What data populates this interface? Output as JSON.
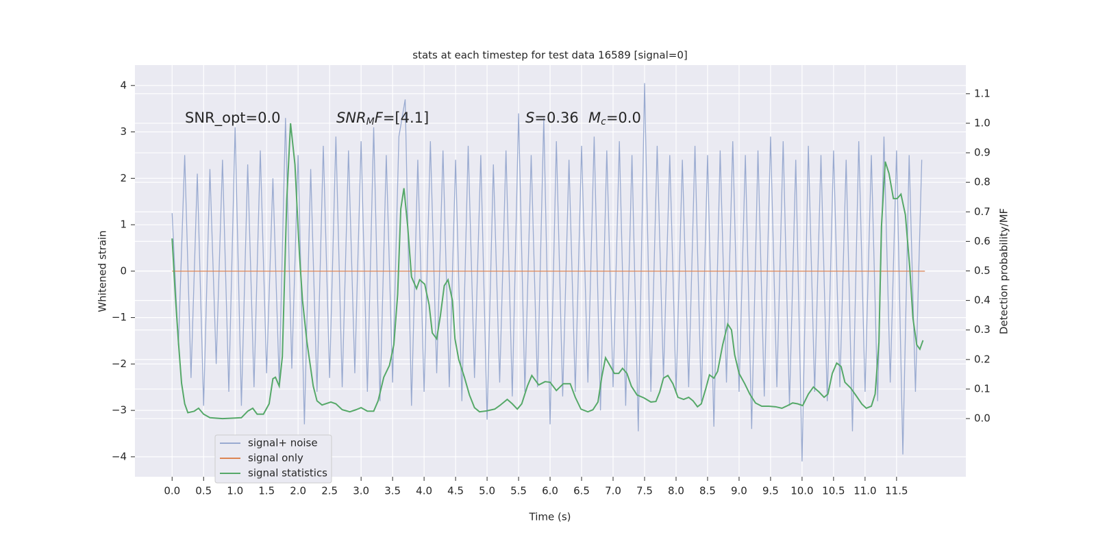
{
  "chart_data": {
    "type": "line",
    "title": "stats at each timestep for test data 16589 [signal=0]",
    "xlabel": "Time (s)",
    "ylabel": "Whitened strain",
    "y2label": "Detection probability/MF",
    "xlim": [
      -0.59,
      12.6
    ],
    "ylim": [
      -4.43,
      4.44
    ],
    "y2lim": [
      -0.197,
      1.197
    ],
    "xticks": [
      {
        "value": 0,
        "label": "0.0"
      },
      0.5,
      {
        "value": 1,
        "label": "1.0"
      },
      1.5,
      {
        "value": 2,
        "label": "2.0"
      },
      2.5,
      {
        "value": 3,
        "label": "3.0"
      },
      3.5,
      {
        "value": 4,
        "label": "4.0"
      },
      4.5,
      {
        "value": 5,
        "label": "5.0"
      },
      5.5,
      {
        "value": 6,
        "label": "6.0"
      },
      6.5,
      {
        "value": 7,
        "label": "7.0"
      },
      7.5,
      {
        "value": 8,
        "label": "8.0"
      },
      8.5,
      {
        "value": 9,
        "label": "9.0"
      },
      9.5,
      {
        "value": 10,
        "label": "10.0"
      },
      10.5,
      {
        "value": 11,
        "label": "11.0"
      },
      11.5
    ],
    "yticks": [
      {
        "value": -4,
        "label": "−4"
      },
      {
        "value": -3,
        "label": "−3"
      },
      {
        "value": -2,
        "label": "−2"
      },
      {
        "value": -1,
        "label": "−1"
      },
      0,
      1,
      2,
      3,
      4
    ],
    "y2ticks": [
      {
        "value": 0,
        "label": "0.0"
      },
      0.1,
      0.2,
      0.3,
      0.4,
      0.5,
      0.6,
      0.7,
      0.8,
      0.9,
      {
        "value": 1,
        "label": "1.0"
      },
      1.1
    ],
    "grid": true,
    "legend_loc": "lower left",
    "annotations": [
      {
        "parts": [
          {
            "text": "SNR_opt=0.0",
            "style": "normal"
          }
        ]
      },
      {
        "parts": [
          {
            "text": "SNR",
            "style": "italic"
          },
          {
            "text": "M",
            "style": "sub"
          },
          {
            "text": "F",
            "style": "italic"
          },
          {
            "text": "=[4.1]",
            "style": "normal"
          }
        ]
      },
      {
        "parts": [
          {
            "text": "S",
            "style": "italic"
          },
          {
            "text": "=0.36",
            "style": "normal"
          }
        ]
      },
      {
        "parts": [
          {
            "text": "M",
            "style": "italic"
          },
          {
            "text": "c",
            "style": "sub"
          },
          {
            "text": "=0.0",
            "style": "normal"
          }
        ]
      }
    ],
    "series": [
      {
        "name": "signal+ noise",
        "color": "#99aad0",
        "axis": "y",
        "x": [
          0,
          0.1,
          0.2,
          0.3,
          0.4,
          0.5,
          0.6,
          0.7,
          0.8,
          0.9,
          1,
          1.1,
          1.2,
          1.3,
          1.4,
          1.5,
          1.6,
          1.7,
          1.8,
          1.9,
          2,
          2.1,
          2.2,
          2.3,
          2.4,
          2.5,
          2.6,
          2.7,
          2.8,
          2.9,
          3,
          3.1,
          3.2,
          3.3,
          3.4,
          3.5,
          3.6,
          3.7,
          3.8,
          3.9,
          4,
          4.1,
          4.2,
          4.3,
          4.4,
          4.5,
          4.6,
          4.7,
          4.8,
          4.9,
          5,
          5.1,
          5.2,
          5.3,
          5.4,
          5.5,
          5.6,
          5.7,
          5.8,
          5.9,
          6,
          6.1,
          6.2,
          6.3,
          6.4,
          6.5,
          6.6,
          6.7,
          6.8,
          6.9,
          7,
          7.1,
          7.2,
          7.3,
          7.4,
          7.5,
          7.6,
          7.7,
          7.8,
          7.9,
          8,
          8.1,
          8.2,
          8.3,
          8.4,
          8.5,
          8.6,
          8.7,
          8.8,
          8.9,
          9,
          9.1,
          9.2,
          9.3,
          9.4,
          9.5,
          9.6,
          9.7,
          9.8,
          9.9,
          10,
          10.1,
          10.2,
          10.3,
          10.4,
          10.5,
          10.6,
          10.7,
          10.8,
          10.9,
          11,
          11.1,
          11.2,
          11.3,
          11.4,
          11.5,
          11.6,
          11.7,
          11.8,
          11.9
        ],
        "values": [
          1.25,
          -1.6,
          2.5,
          -2.3,
          2.1,
          -2.9,
          2.2,
          -2.0,
          2.4,
          -2.6,
          3.1,
          -2.9,
          2.3,
          -2.5,
          2.6,
          -2.2,
          2.0,
          -2.4,
          3.3,
          -2.1,
          2.5,
          -3.3,
          2.2,
          -2.6,
          2.7,
          -2.3,
          2.9,
          -2.5,
          2.6,
          -2.2,
          2.8,
          -2.6,
          3.1,
          -2.8,
          2.5,
          -2.4,
          2.9,
          3.7,
          -2.9,
          2.4,
          -2.6,
          2.8,
          -2.2,
          2.6,
          -2.5,
          2.4,
          -2.8,
          2.7,
          -2.3,
          2.5,
          -3.2,
          2.3,
          -2.4,
          2.6,
          -2.7,
          3.4,
          -2.6,
          2.5,
          -2.5,
          3.3,
          -3.3,
          2.8,
          -2.7,
          2.4,
          -2.6,
          2.7,
          -2.4,
          2.9,
          -3.0,
          2.6,
          -2.5,
          2.8,
          -2.9,
          2.5,
          -3.45,
          4.05,
          -2.6,
          2.7,
          -2.3,
          2.5,
          -2.6,
          2.4,
          -2.5,
          2.7,
          -2.8,
          2.5,
          -3.35,
          2.6,
          -2.4,
          2.8,
          -2.6,
          2.5,
          -3.4,
          2.6,
          -2.7,
          2.9,
          -2.5,
          2.8,
          -2.9,
          2.4,
          -4.1,
          2.7,
          -2.6,
          2.5,
          -2.8,
          2.6,
          -2.5,
          2.4,
          -3.45,
          2.8,
          -2.6,
          2.5,
          -2.8,
          2.9,
          -2.4,
          2.6,
          -3.95,
          2.5,
          -2.6,
          2.4
        ]
      },
      {
        "name": "signal only",
        "color": "#dd8452",
        "axis": "y",
        "x": [
          0,
          11.95
        ],
        "values": [
          0,
          0
        ]
      },
      {
        "name": "signal statistics",
        "color": "#55a868",
        "axis": "y2",
        "x": [
          0,
          0.05,
          0.1,
          0.15,
          0.2,
          0.25,
          0.35,
          0.42,
          0.5,
          0.6,
          0.8,
          1.0,
          1.1,
          1.2,
          1.28,
          1.35,
          1.45,
          1.54,
          1.6,
          1.64,
          1.7,
          1.75,
          1.82,
          1.88,
          1.95,
          2.02,
          2.07,
          2.14,
          2.24,
          2.3,
          2.38,
          2.52,
          2.6,
          2.7,
          2.82,
          2.92,
          3.0,
          3.1,
          3.2,
          3.27,
          3.36,
          3.45,
          3.52,
          3.58,
          3.63,
          3.68,
          3.74,
          3.8,
          3.88,
          3.93,
          4.01,
          4.08,
          4.13,
          4.2,
          4.26,
          4.32,
          4.38,
          4.45,
          4.49,
          4.55,
          4.64,
          4.72,
          4.8,
          4.88,
          4.99,
          5.12,
          5.2,
          5.32,
          5.4,
          5.48,
          5.55,
          5.64,
          5.71,
          5.82,
          5.92,
          6.0,
          6.1,
          6.21,
          6.32,
          6.4,
          6.49,
          6.6,
          6.68,
          6.76,
          6.82,
          6.88,
          6.95,
          7.02,
          7.09,
          7.15,
          7.22,
          7.29,
          7.38,
          7.49,
          7.6,
          7.68,
          7.74,
          7.8,
          7.87,
          7.95,
          8.03,
          8.12,
          8.2,
          8.27,
          8.34,
          8.4,
          8.47,
          8.53,
          8.6,
          8.66,
          8.74,
          8.82,
          8.88,
          8.93,
          9.0,
          9.09,
          9.17,
          9.26,
          9.36,
          9.47,
          9.58,
          9.68,
          9.77,
          9.85,
          9.93,
          10.01,
          10.1,
          10.18,
          10.27,
          10.35,
          10.41,
          10.48,
          10.55,
          10.62,
          10.68,
          10.77,
          10.86,
          10.95,
          11.02,
          11.1,
          11.16,
          11.22,
          11.26,
          11.32,
          11.38,
          11.45,
          11.51,
          11.57,
          11.64,
          11.71,
          11.76,
          11.82,
          11.87,
          11.92
        ],
        "values": [
          0.61,
          0.42,
          0.26,
          0.12,
          0.05,
          0.02,
          0.025,
          0.035,
          0.015,
          0.003,
          0.0,
          0.002,
          0.003,
          0.025,
          0.035,
          0.015,
          0.015,
          0.05,
          0.135,
          0.14,
          0.11,
          0.21,
          0.74,
          1.0,
          0.86,
          0.56,
          0.4,
          0.26,
          0.11,
          0.06,
          0.046,
          0.056,
          0.05,
          0.03,
          0.023,
          0.03,
          0.037,
          0.025,
          0.025,
          0.06,
          0.14,
          0.18,
          0.25,
          0.42,
          0.71,
          0.78,
          0.65,
          0.48,
          0.44,
          0.47,
          0.455,
          0.385,
          0.29,
          0.27,
          0.35,
          0.45,
          0.47,
          0.4,
          0.27,
          0.2,
          0.14,
          0.08,
          0.037,
          0.023,
          0.026,
          0.032,
          0.044,
          0.065,
          0.05,
          0.032,
          0.05,
          0.11,
          0.146,
          0.114,
          0.125,
          0.123,
          0.095,
          0.118,
          0.118,
          0.072,
          0.032,
          0.023,
          0.03,
          0.056,
          0.14,
          0.206,
          0.18,
          0.153,
          0.153,
          0.17,
          0.153,
          0.11,
          0.08,
          0.07,
          0.056,
          0.058,
          0.09,
          0.137,
          0.146,
          0.118,
          0.072,
          0.065,
          0.072,
          0.06,
          0.04,
          0.05,
          0.1,
          0.148,
          0.137,
          0.16,
          0.25,
          0.32,
          0.3,
          0.216,
          0.153,
          0.118,
          0.083,
          0.053,
          0.042,
          0.042,
          0.04,
          0.035,
          0.044,
          0.053,
          0.05,
          0.044,
          0.083,
          0.107,
          0.09,
          0.072,
          0.083,
          0.153,
          0.188,
          0.176,
          0.123,
          0.104,
          0.077,
          0.049,
          0.035,
          0.042,
          0.083,
          0.258,
          0.65,
          0.87,
          0.83,
          0.745,
          0.745,
          0.76,
          0.69,
          0.51,
          0.34,
          0.25,
          0.235,
          0.265
        ]
      }
    ]
  }
}
